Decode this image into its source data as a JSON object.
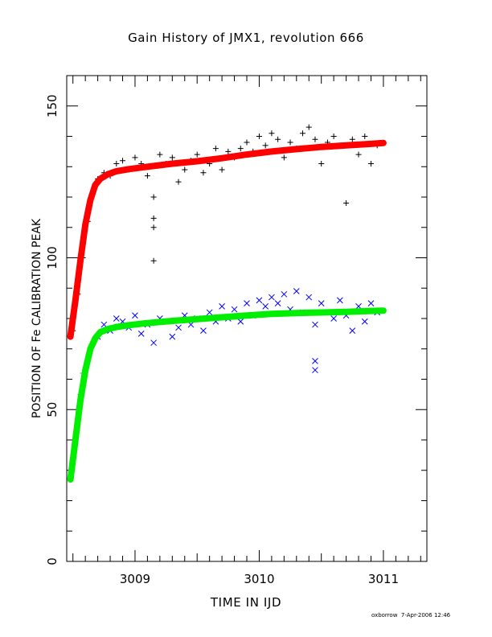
{
  "footer": {
    "user": "oxborrow",
    "timestamp": "7-Apr-2006 12:46"
  },
  "chart_data": {
    "type": "scatter",
    "title": "Gain History of JMX1, revolution 666",
    "xlabel": "TIME IN IJD",
    "ylabel": "POSITION OF Fe CALIBRATION PEAK",
    "xlim": [
      3008.45,
      3011.35
    ],
    "ylim": [
      0,
      160
    ],
    "xticks": [
      3009,
      3010,
      3011
    ],
    "yticks": [
      0,
      50,
      100,
      150
    ],
    "grid": false,
    "series": [
      {
        "marker": "plus",
        "color": "#000000",
        "x": [
          3008.5,
          3008.54,
          3008.58,
          3008.62,
          3008.66,
          3008.7,
          3008.75,
          3008.8,
          3008.85,
          3008.9,
          3008.95,
          3009.0,
          3009.05,
          3009.1,
          3009.15,
          3009.2,
          3009.25,
          3009.3,
          3009.35,
          3009.4,
          3009.45,
          3009.5,
          3009.55,
          3009.6,
          3009.65,
          3009.7,
          3009.75,
          3009.8,
          3009.85,
          3009.9,
          3009.95,
          3010.0,
          3010.05,
          3010.1,
          3010.15,
          3010.2,
          3010.25,
          3010.3,
          3010.35,
          3010.4,
          3010.45,
          3010.5,
          3010.55,
          3010.6,
          3010.65,
          3010.7,
          3010.75,
          3010.8,
          3010.85,
          3010.9,
          3010.95,
          3009.15,
          3009.15,
          3009.15
        ],
        "y": [
          76,
          88,
          100,
          112,
          121,
          126,
          128,
          127,
          131,
          132,
          129,
          133,
          131,
          127,
          120,
          134,
          131,
          133,
          125,
          129,
          132,
          134,
          128,
          131,
          136,
          129,
          135,
          133,
          136,
          138,
          135,
          140,
          137,
          141,
          139,
          133,
          138,
          136,
          141,
          143,
          139,
          131,
          138,
          140,
          137,
          118,
          139,
          134,
          140,
          131,
          137,
          113,
          110,
          99
        ]
      },
      {
        "marker": "line",
        "color": "#ff0000",
        "x": [
          3008.48,
          3008.52,
          3008.56,
          3008.6,
          3008.64,
          3008.68,
          3008.72,
          3008.78,
          3008.85,
          3008.95,
          3009.1,
          3009.3,
          3009.5,
          3009.7,
          3009.9,
          3010.1,
          3010.3,
          3010.5,
          3010.7,
          3010.9,
          3011.0
        ],
        "y": [
          74,
          86,
          99,
          111,
          119,
          124,
          126,
          127.5,
          128.5,
          129.2,
          130.0,
          131.0,
          131.8,
          132.8,
          134.0,
          135.0,
          135.8,
          136.5,
          137.0,
          137.5,
          137.8
        ]
      },
      {
        "marker": "cross",
        "color": "#0000ff",
        "x": [
          3008.7,
          3008.75,
          3008.8,
          3008.85,
          3008.9,
          3008.95,
          3009.0,
          3009.05,
          3009.1,
          3009.15,
          3009.2,
          3009.25,
          3009.3,
          3009.35,
          3009.4,
          3009.45,
          3009.5,
          3009.55,
          3009.6,
          3009.65,
          3009.7,
          3009.75,
          3009.8,
          3009.85,
          3009.9,
          3009.95,
          3010.0,
          3010.05,
          3010.1,
          3010.15,
          3010.2,
          3010.25,
          3010.3,
          3010.35,
          3010.4,
          3010.45,
          3010.5,
          3010.55,
          3010.6,
          3010.65,
          3010.7,
          3010.75,
          3010.8,
          3010.85,
          3010.9,
          3010.95,
          3010.45,
          3010.45
        ],
        "y": [
          74,
          78,
          76,
          80,
          79,
          77,
          81,
          75,
          78,
          72,
          80,
          79,
          74,
          77,
          81,
          78,
          80,
          76,
          82,
          79,
          84,
          80,
          83,
          79,
          85,
          81,
          86,
          84,
          87,
          85,
          88,
          83,
          89,
          82,
          87,
          78,
          85,
          82,
          80,
          86,
          81,
          76,
          84,
          79,
          85,
          82,
          66,
          63
        ]
      },
      {
        "marker": "plus",
        "color": "#00cc00",
        "x": [
          3008.48,
          3008.5,
          3008.52,
          3008.54,
          3008.56,
          3008.58
        ],
        "y": [
          27,
          32,
          40,
          47,
          55,
          62
        ]
      },
      {
        "marker": "line",
        "color": "#00ee00",
        "x": [
          3008.48,
          3008.52,
          3008.56,
          3008.6,
          3008.64,
          3008.68,
          3008.72,
          3008.78,
          3008.85,
          3008.95,
          3009.1,
          3009.3,
          3009.5,
          3009.7,
          3009.9,
          3010.1,
          3010.3,
          3010.5,
          3010.7,
          3010.9,
          3011.0
        ],
        "y": [
          27,
          40,
          53,
          63,
          70,
          73.5,
          75.5,
          76.5,
          77.2,
          77.8,
          78.5,
          79.2,
          79.8,
          80.4,
          81.0,
          81.5,
          81.8,
          82.0,
          82.2,
          82.5,
          82.6
        ]
      }
    ]
  }
}
